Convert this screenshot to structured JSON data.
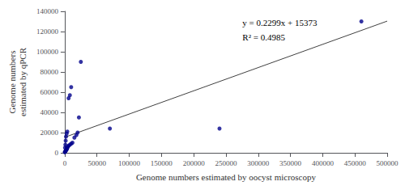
{
  "chart_data": {
    "type": "scatter",
    "xlabel": "Genome numbers estimated by oocyst microscopy",
    "ylabel": "Genome numbers\nestimated by qPCR",
    "annotations": [
      "y = 0.2299x + 15373",
      "R² = 0.4985"
    ],
    "xlim": [
      0,
      500000
    ],
    "ylim": [
      0,
      140000
    ],
    "xticks": [
      0,
      50000,
      100000,
      150000,
      200000,
      250000,
      300000,
      350000,
      400000,
      450000,
      500000
    ],
    "yticks": [
      0,
      20000,
      40000,
      60000,
      80000,
      100000,
      120000,
      140000
    ],
    "grid": false,
    "series": [
      {
        "type": "scatter",
        "color": "#00008B",
        "marker": "circle",
        "x": [
          0,
          500,
          1000,
          1500,
          2000,
          2500,
          3000,
          3500,
          4000,
          5000,
          6000,
          8000,
          10000,
          12000,
          15000,
          18000,
          20000,
          22000,
          25000,
          500,
          1000,
          1500,
          2000,
          3000,
          4000,
          6000,
          8000,
          10000,
          70000,
          240000,
          460000
        ],
        "values": [
          500,
          1000,
          1500,
          2000,
          2500,
          3000,
          3500,
          4000,
          5000,
          6000,
          7000,
          8000,
          9000,
          10000,
          15000,
          17500,
          20000,
          35000,
          90000,
          5000,
          8000,
          12000,
          16000,
          19000,
          21000,
          54000,
          57000,
          65000,
          24000,
          24000,
          130000
        ]
      },
      {
        "type": "line",
        "color": "#404040",
        "line_style": "solid",
        "x": [
          0,
          500000
        ],
        "values": [
          15373,
          130323
        ]
      }
    ]
  }
}
